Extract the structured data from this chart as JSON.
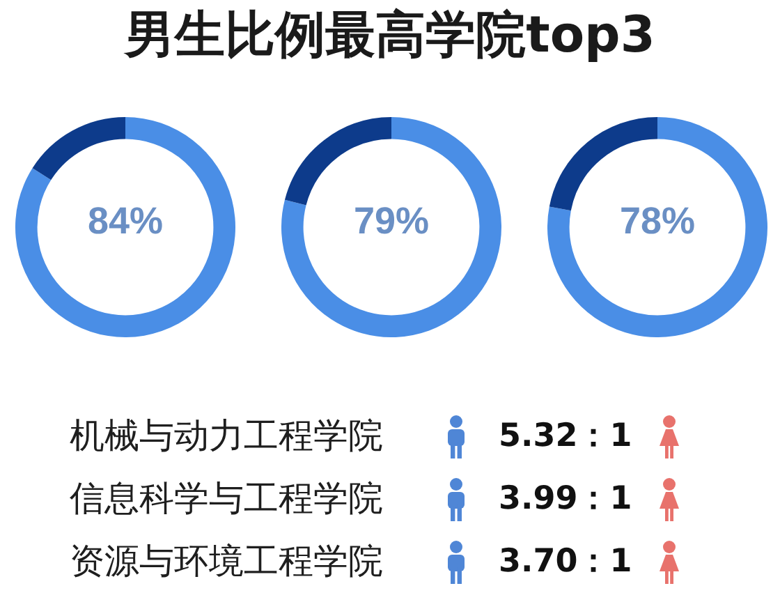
{
  "chart_data": [
    {
      "type": "donut",
      "title": "男生比例最高学院top3",
      "categories": [
        null,
        null
      ],
      "values": [
        84,
        16
      ],
      "colors": [
        "#4a8ee6",
        "#0d3b8b"
      ],
      "value_labels": [
        "84%",
        null
      ]
    },
    {
      "type": "donut",
      "categories": [
        null,
        null
      ],
      "values": [
        79,
        21
      ],
      "colors": [
        "#4a8ee6",
        "#0d3b8b"
      ],
      "value_labels": [
        "79%",
        null
      ]
    },
    {
      "type": "donut",
      "categories": [
        null,
        null
      ],
      "values": [
        78,
        22
      ],
      "colors": [
        "#4a8ee6",
        "#0d3b8b"
      ],
      "value_labels": [
        "78%",
        null
      ]
    },
    {
      "type": "other",
      "categories": [
        "机械与动力工程学院",
        "信息科学与工程学院",
        "资源与环境工程学院"
      ],
      "value_labels": [
        "5.32：1",
        "3.99：1",
        "3.70：1"
      ]
    }
  ]
}
